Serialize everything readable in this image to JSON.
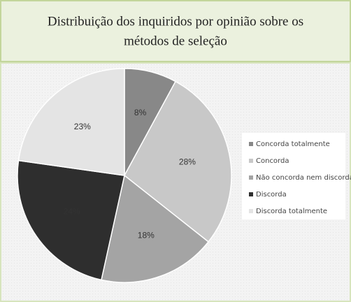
{
  "chart_data": {
    "type": "pie",
    "title": [
      "Distribuição dos inquiridos por opinião sobre os",
      "métodos de seleção"
    ],
    "categories": [
      "Concorda totalmente",
      "Concorda",
      "Não concorda nem discorda",
      "Discorda",
      "Discorda totalmente"
    ],
    "values": [
      8,
      28,
      18,
      24,
      23
    ],
    "value_labels": [
      "8%",
      "28%",
      "18%",
      "24%",
      "23%"
    ],
    "colors": [
      "#888888",
      "#c8c8c8",
      "#a4a4a4",
      "#2e2e2e",
      "#e4e4e4"
    ],
    "legend": "right"
  }
}
